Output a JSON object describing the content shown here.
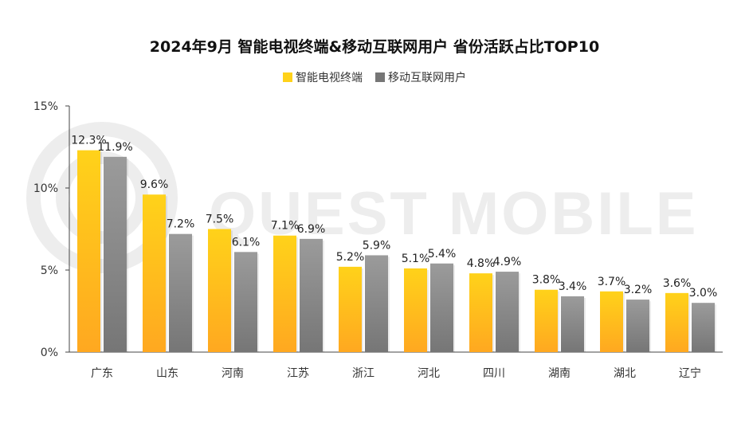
{
  "colors": {
    "series1_top": "#FFD21A",
    "series1_bottom": "#FFA820",
    "series2_top": "#9B9B9B",
    "series2_bottom": "#767676",
    "axis": "#444444",
    "watermark": "#EDEDED"
  },
  "watermark_text": "QUEST MOBILE",
  "chart_data": {
    "type": "bar",
    "title": "2024年9月 智能电视终端&移动互联网用户 省份活跃占比TOP10",
    "xlabel": "",
    "ylabel": "",
    "ylim": [
      0,
      15
    ],
    "yticks": [
      0,
      5,
      10,
      15
    ],
    "ytick_labels": [
      "0%",
      "5%",
      "10%",
      "15%"
    ],
    "legend_position": "top-center",
    "grid": false,
    "categories": [
      "广东",
      "山东",
      "河南",
      "江苏",
      "浙江",
      "河北",
      "四川",
      "湖南",
      "湖北",
      "辽宁"
    ],
    "series": [
      {
        "name": "智能电视终端",
        "values": [
          12.3,
          9.6,
          7.5,
          7.1,
          5.2,
          5.1,
          4.8,
          3.8,
          3.7,
          3.6
        ],
        "labels": [
          "12.3%",
          "9.6%",
          "7.5%",
          "7.1%",
          "5.2%",
          "5.1%",
          "4.8%",
          "3.8%",
          "3.7%",
          "3.6%"
        ]
      },
      {
        "name": "移动互联网用户",
        "values": [
          11.9,
          7.2,
          6.1,
          6.9,
          5.9,
          5.4,
          4.9,
          3.4,
          3.2,
          3.0
        ],
        "labels": [
          "11.9%",
          "7.2%",
          "6.1%",
          "6.9%",
          "5.9%",
          "5.4%",
          "4.9%",
          "3.4%",
          "3.2%",
          "3.0%"
        ]
      }
    ]
  }
}
